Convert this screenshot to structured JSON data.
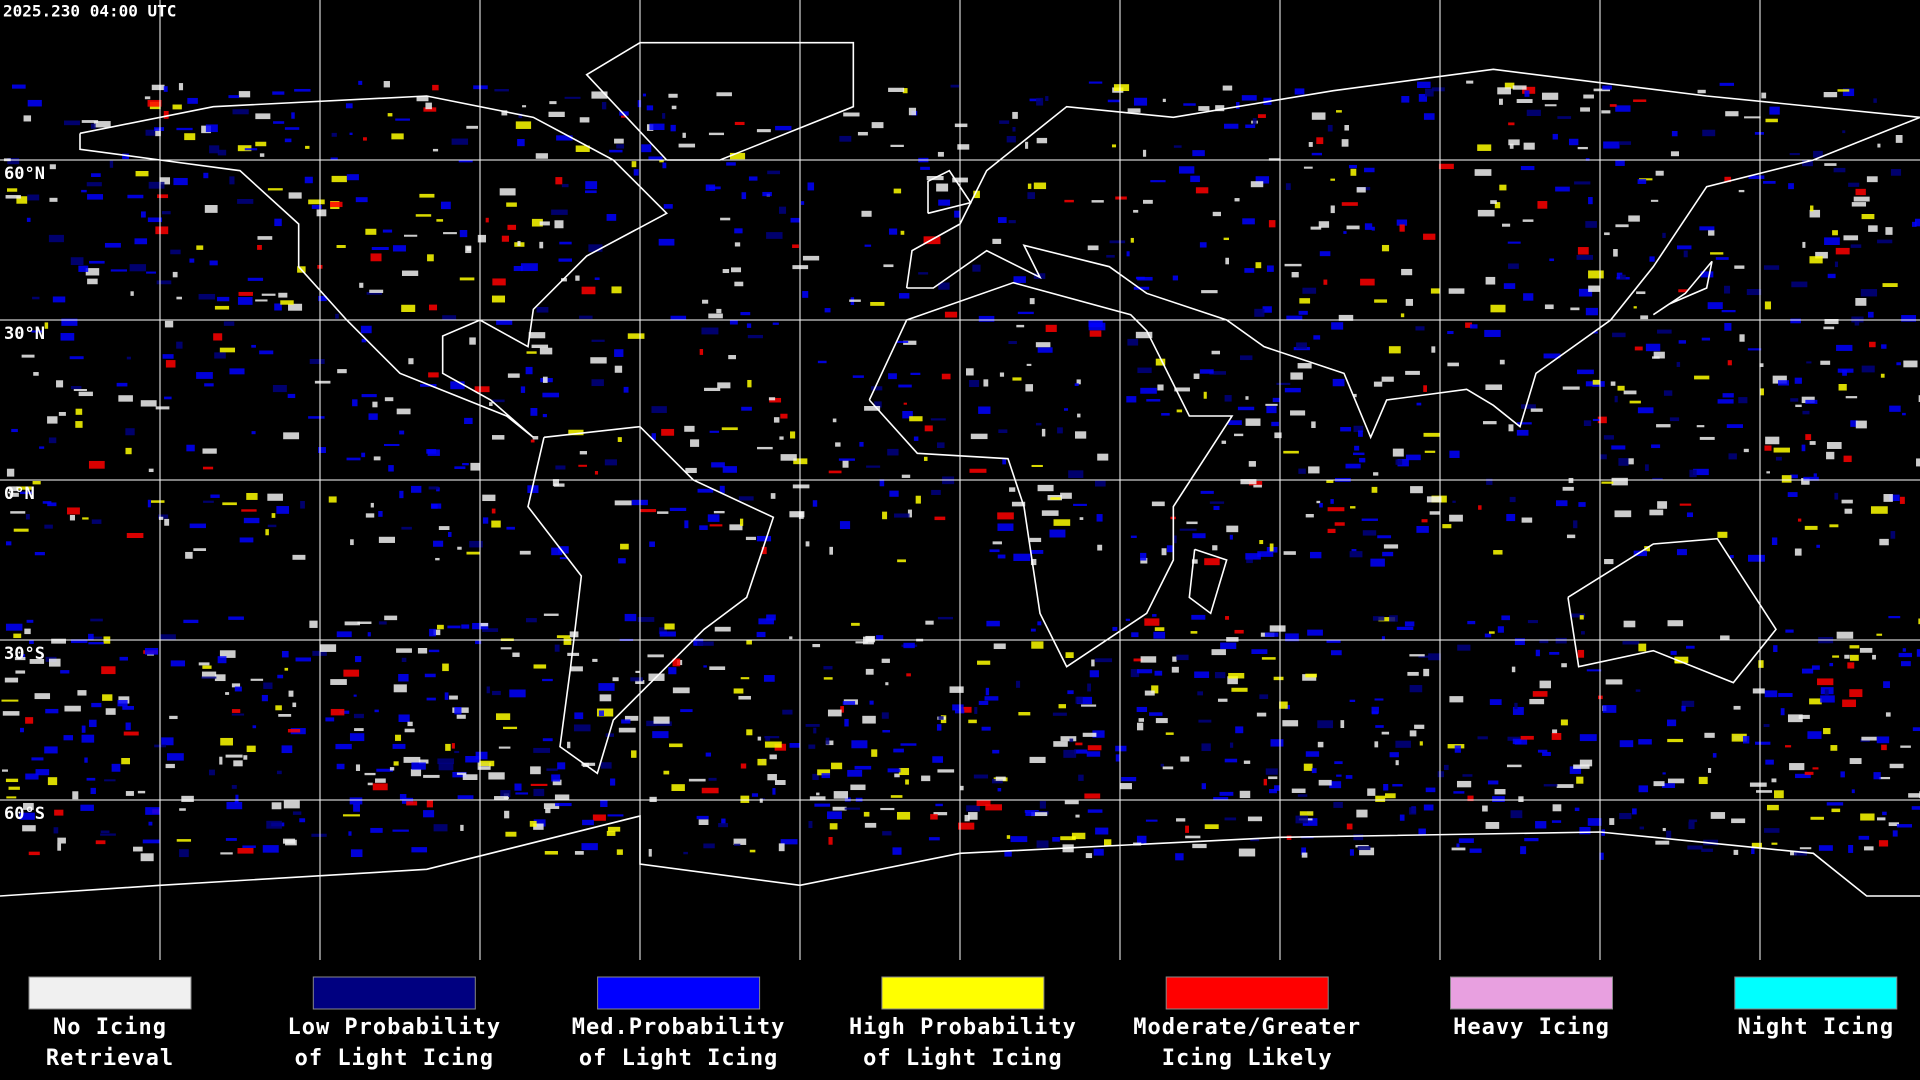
{
  "header": {
    "timestamp": "2025.230 04:00 UTC"
  },
  "latitude_lines": [
    {
      "value": 60,
      "label": "60°N"
    },
    {
      "value": 30,
      "label": "30°N"
    },
    {
      "value": 0,
      "label": "0°N"
    },
    {
      "value": -30,
      "label": "30°S"
    },
    {
      "value": -60,
      "label": "60°S"
    }
  ],
  "legend": [
    {
      "color": "#f0f0f0",
      "lines": [
        "No Icing",
        "Retrieval"
      ]
    },
    {
      "color": "#000080",
      "lines": [
        "Low Probability",
        "of Light Icing"
      ]
    },
    {
      "color": "#0000ff",
      "lines": [
        "Med.Probability",
        "of Light Icing"
      ]
    },
    {
      "color": "#ffff00",
      "lines": [
        "High Probability",
        "of Light Icing"
      ]
    },
    {
      "color": "#ff0000",
      "lines": [
        "Moderate/Greater",
        "Icing Likely"
      ]
    },
    {
      "color": "#e8a0e0",
      "lines": [
        "Heavy Icing"
      ]
    },
    {
      "color": "#00ffff",
      "lines": [
        "Night Icing"
      ]
    }
  ]
}
